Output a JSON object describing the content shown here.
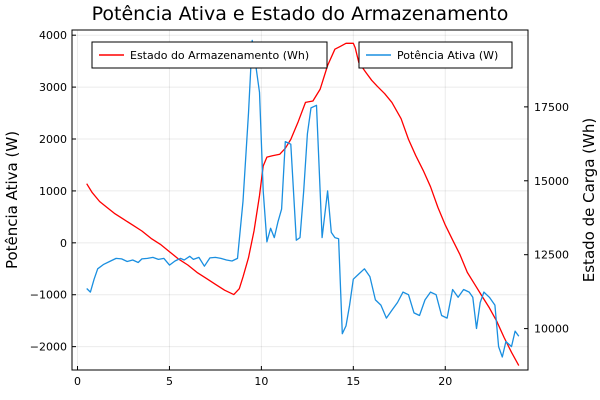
{
  "chart_data": {
    "type": "line",
    "title": "Potência Ativa e Estado do Armazenamento",
    "xlabel": "",
    "ylabel_left": "Potência Ativa (W)",
    "ylabel_right": "Estado de Carga (Wh)",
    "xlim": [
      -0.3,
      24.5
    ],
    "ylim_left": [
      -2450,
      4100
    ],
    "ylim_right": [
      8600,
      20100
    ],
    "x_ticks": [
      "0",
      "5",
      "10",
      "15",
      "20"
    ],
    "x_tick_values": [
      0,
      5,
      10,
      15,
      20
    ],
    "y_left_ticks": [
      "−2000",
      "−1000",
      "0",
      "1000",
      "2000",
      "3000",
      "4000"
    ],
    "y_left_tick_values": [
      -2000,
      -1000,
      0,
      1000,
      2000,
      3000,
      4000
    ],
    "y_right_ticks": [
      "10000",
      "12500",
      "15000",
      "17500"
    ],
    "y_right_tick_values": [
      10000,
      12500,
      15000,
      17500
    ],
    "grid": true,
    "series": [
      {
        "name": "Estado do Armazenamento (Wh)",
        "axis": "right",
        "color": "#ff0000",
        "x": [
          0.5,
          0.8,
          1.2,
          1.6,
          2.0,
          2.5,
          3.0,
          3.5,
          4.0,
          4.5,
          5.0,
          5.5,
          6.0,
          6.5,
          7.0,
          7.5,
          8.0,
          8.5,
          8.8,
          9.0,
          9.3,
          9.6,
          9.9,
          10.1,
          10.3,
          10.6,
          11.0,
          11.3,
          11.6,
          12.0,
          12.4,
          12.8,
          13.2,
          13.6,
          14.0,
          14.3,
          14.6,
          15.0,
          15.1,
          15.3,
          15.7,
          16.0,
          16.3,
          16.7,
          17.1,
          17.6,
          18.0,
          18.4,
          18.8,
          19.2,
          19.6,
          20.0,
          20.4,
          20.8,
          21.2,
          21.6,
          22.0,
          22.4,
          22.8,
          23.2,
          23.6,
          24.0
        ],
        "values": [
          14900,
          14600,
          14300,
          14100,
          13900,
          13700,
          13500,
          13300,
          13050,
          12850,
          12600,
          12350,
          12150,
          11900,
          11700,
          11500,
          11300,
          11150,
          11350,
          11750,
          12400,
          13300,
          14500,
          15500,
          15800,
          15850,
          15900,
          16100,
          16400,
          17000,
          17650,
          17700,
          18100,
          18900,
          19450,
          19550,
          19650,
          19650,
          19500,
          19000,
          18650,
          18400,
          18200,
          17950,
          17650,
          17100,
          16400,
          15850,
          15350,
          14800,
          14100,
          13500,
          13000,
          12500,
          11900,
          11500,
          11100,
          10700,
          10250,
          9700,
          9200,
          8750
        ]
      },
      {
        "name": "Potência Ativa (W)",
        "axis": "left",
        "color": "#1a8fe0",
        "x": [
          0.5,
          0.7,
          0.9,
          1.1,
          1.4,
          1.8,
          2.1,
          2.4,
          2.7,
          3.0,
          3.3,
          3.5,
          3.8,
          4.1,
          4.4,
          4.7,
          5.0,
          5.3,
          5.6,
          5.8,
          6.1,
          6.3,
          6.6,
          6.9,
          7.2,
          7.5,
          7.8,
          8.1,
          8.4,
          8.7,
          9.0,
          9.3,
          9.5,
          9.7,
          9.9,
          10.1,
          10.3,
          10.5,
          10.7,
          10.9,
          11.1,
          11.3,
          11.6,
          11.9,
          12.1,
          12.3,
          12.5,
          12.7,
          13.0,
          13.3,
          13.6,
          13.8,
          14.0,
          14.2,
          14.4,
          14.6,
          14.8,
          15.0,
          15.3,
          15.6,
          15.9,
          16.2,
          16.5,
          16.8,
          17.1,
          17.4,
          17.7,
          18.0,
          18.3,
          18.6,
          18.9,
          19.2,
          19.5,
          19.8,
          20.1,
          20.4,
          20.7,
          21.0,
          21.3,
          21.5,
          21.7,
          21.9,
          22.1,
          22.4,
          22.7,
          22.9,
          23.1,
          23.3,
          23.6,
          23.8,
          24.0
        ],
        "values": [
          -880,
          -950,
          -700,
          -500,
          -420,
          -350,
          -300,
          -310,
          -360,
          -330,
          -380,
          -310,
          -300,
          -280,
          -320,
          -300,
          -430,
          -350,
          -300,
          -330,
          -260,
          -320,
          -280,
          -450,
          -290,
          -280,
          -300,
          -330,
          -350,
          -300,
          800,
          2500,
          3900,
          3400,
          2900,
          1000,
          20,
          280,
          100,
          400,
          650,
          1950,
          1900,
          50,
          100,
          1000,
          2100,
          2600,
          2650,
          100,
          1000,
          200,
          100,
          80,
          -1750,
          -1600,
          -1200,
          -700,
          -600,
          -500,
          -650,
          -1100,
          -1200,
          -1450,
          -1300,
          -1150,
          -950,
          -1000,
          -1350,
          -1400,
          -1100,
          -950,
          -1000,
          -1400,
          -1450,
          -900,
          -1050,
          -900,
          -950,
          -1050,
          -1650,
          -1150,
          -950,
          -1050,
          -1200,
          -2000,
          -2200,
          -1900,
          -2000,
          -1700,
          -1800
        ]
      }
    ]
  }
}
